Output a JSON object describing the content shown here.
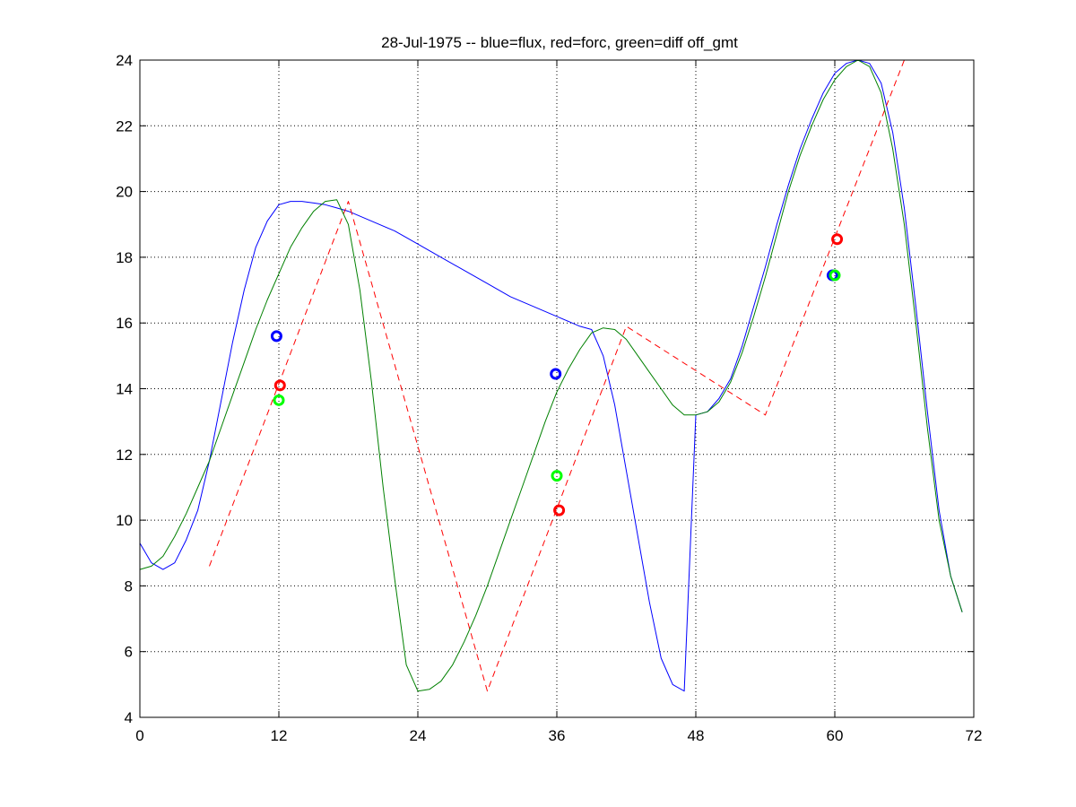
{
  "chart_data": {
    "type": "line",
    "title": "28-Jul-1975 -- blue=flux, red=forc, green=diff off_gmt",
    "xlabel": "",
    "ylabel": "",
    "xlim": [
      0,
      72
    ],
    "ylim": [
      4,
      24
    ],
    "xticks": [
      0,
      12,
      24,
      36,
      48,
      60,
      72
    ],
    "yticks": [
      4,
      6,
      8,
      10,
      12,
      14,
      16,
      18,
      20,
      22,
      24
    ],
    "grid": true,
    "series": [
      {
        "color": "#0000ff",
        "style": "solid",
        "x": [
          0,
          1,
          2,
          3,
          4,
          5,
          6,
          7,
          8,
          9,
          10,
          11,
          12,
          13,
          14,
          15,
          16,
          17,
          18,
          20,
          22,
          24,
          26,
          28,
          30,
          32,
          34,
          36,
          38,
          39,
          40,
          41,
          42,
          43,
          44,
          45,
          46,
          47,
          48,
          49,
          50,
          51,
          52,
          53,
          54,
          55,
          56,
          57,
          58,
          59,
          60,
          61,
          62,
          63,
          64,
          65,
          66,
          67,
          68,
          69,
          70,
          71
        ],
        "y": [
          9.3,
          8.7,
          8.5,
          8.7,
          9.4,
          10.3,
          11.8,
          13.6,
          15.4,
          17.0,
          18.3,
          19.1,
          19.6,
          19.7,
          19.7,
          19.65,
          19.6,
          19.5,
          19.4,
          19.1,
          18.8,
          18.4,
          18.0,
          17.6,
          17.2,
          16.8,
          16.5,
          16.2,
          15.9,
          15.8,
          15.0,
          13.5,
          11.5,
          9.5,
          7.5,
          5.8,
          5.0,
          4.8,
          13.2,
          13.3,
          13.7,
          14.3,
          15.3,
          16.5,
          17.7,
          19.0,
          20.2,
          21.3,
          22.2,
          23.0,
          23.6,
          23.9,
          24.0,
          23.9,
          23.3,
          21.8,
          19.5,
          16.5,
          13.3,
          10.3,
          8.3,
          7.2
        ]
      },
      {
        "color": "#ff0000",
        "style": "dashed",
        "x": [
          6,
          18,
          30,
          42,
          54,
          66
        ],
        "y": [
          8.6,
          19.7,
          4.8,
          15.9,
          13.2,
          24.0
        ]
      },
      {
        "color": "#008000",
        "style": "solid",
        "x": [
          0,
          1,
          2,
          3,
          4,
          5,
          6,
          7,
          8,
          9,
          10,
          11,
          12,
          13,
          14,
          15,
          16,
          17,
          18,
          19,
          20,
          21,
          22,
          23,
          24,
          25,
          26,
          27,
          28,
          29,
          30,
          31,
          32,
          33,
          34,
          35,
          36,
          37,
          38,
          39,
          40,
          41,
          42,
          43,
          44,
          45,
          46,
          47,
          48,
          49,
          50,
          51,
          52,
          53,
          54,
          55,
          56,
          57,
          58,
          59,
          60,
          61,
          62,
          63,
          64,
          65,
          66,
          67,
          68,
          69,
          70,
          71
        ],
        "y": [
          8.5,
          8.6,
          8.9,
          9.5,
          10.2,
          11.0,
          11.8,
          12.8,
          13.8,
          14.8,
          15.8,
          16.7,
          17.5,
          18.3,
          18.9,
          19.4,
          19.7,
          19.75,
          19.0,
          17.0,
          14.2,
          11.0,
          8.2,
          5.6,
          4.8,
          4.85,
          5.1,
          5.6,
          6.3,
          7.1,
          8.0,
          9.0,
          10.0,
          11.0,
          12.0,
          13.0,
          13.9,
          14.6,
          15.2,
          15.7,
          15.85,
          15.8,
          15.5,
          15.0,
          14.5,
          14.0,
          13.5,
          13.2,
          13.2,
          13.3,
          13.6,
          14.2,
          15.1,
          16.2,
          17.4,
          18.7,
          20.0,
          21.1,
          22.0,
          22.8,
          23.4,
          23.8,
          24.0,
          23.8,
          23.0,
          21.3,
          19.0,
          16.0,
          12.8,
          10.0,
          8.3,
          7.2
        ]
      }
    ],
    "markers": [
      {
        "color": "#0000ff",
        "x": 11.8,
        "y": 15.6
      },
      {
        "color": "#ff0000",
        "x": 12.1,
        "y": 14.1
      },
      {
        "color": "#00ff00",
        "x": 12.0,
        "y": 13.65
      },
      {
        "color": "#0000ff",
        "x": 35.9,
        "y": 14.45
      },
      {
        "color": "#00ff00",
        "x": 36.0,
        "y": 11.35
      },
      {
        "color": "#ff0000",
        "x": 36.2,
        "y": 10.3
      },
      {
        "color": "#ff0000",
        "x": 60.2,
        "y": 18.55
      },
      {
        "color": "#0000ff",
        "x": 59.8,
        "y": 17.45
      },
      {
        "color": "#00ff00",
        "x": 60.0,
        "y": 17.45
      }
    ]
  }
}
